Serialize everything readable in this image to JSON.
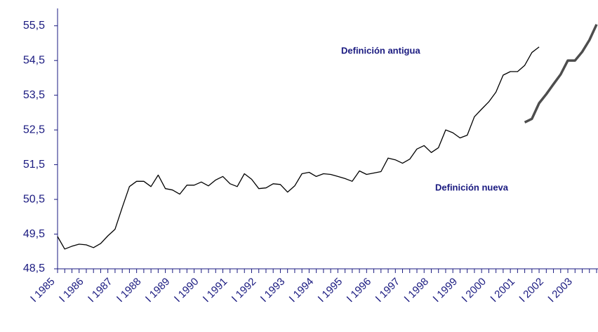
{
  "chart_data": {
    "type": "line",
    "categories": [
      "I 1985",
      null,
      null,
      null,
      "I 1986",
      null,
      null,
      null,
      "I 1987",
      null,
      null,
      null,
      "I 1988",
      null,
      null,
      null,
      "I 1989",
      null,
      null,
      null,
      "I 1990",
      null,
      null,
      null,
      "I 1991",
      null,
      null,
      null,
      "I 1992",
      null,
      null,
      null,
      "I 1993",
      null,
      null,
      null,
      "I 1994",
      null,
      null,
      null,
      "I 1995",
      null,
      null,
      null,
      "I 1996",
      null,
      null,
      null,
      "I 1997",
      null,
      null,
      null,
      "I 1998",
      null,
      null,
      null,
      "I 1999",
      null,
      null,
      null,
      "I 2000",
      null,
      null,
      null,
      "I 2001",
      null,
      null,
      null,
      "I 2002",
      null,
      null,
      null,
      "I 2003",
      null,
      null,
      null
    ],
    "series": [
      {
        "name": "Definición antigua",
        "color": "#000000",
        "values": [
          49.43,
          49.07,
          49.15,
          49.21,
          49.19,
          49.11,
          49.23,
          49.45,
          49.64,
          50.27,
          50.87,
          51.02,
          51.02,
          50.87,
          51.2,
          50.81,
          50.77,
          50.65,
          50.91,
          50.91,
          51.0,
          50.89,
          51.06,
          51.16,
          50.95,
          50.87,
          51.24,
          51.08,
          50.81,
          50.83,
          50.95,
          50.93,
          50.71,
          50.89,
          51.24,
          51.28,
          51.16,
          51.24,
          51.22,
          51.16,
          51.1,
          51.02,
          51.32,
          51.22,
          51.26,
          51.3,
          51.69,
          51.64,
          51.54,
          51.66,
          51.95,
          52.05,
          51.85,
          51.99,
          52.5,
          52.42,
          52.27,
          52.35,
          52.88,
          53.1,
          53.31,
          53.59,
          54.08,
          54.18,
          54.18,
          54.36,
          54.73,
          54.89,
          null,
          null,
          null,
          null,
          null,
          null,
          null,
          null
        ]
      },
      {
        "name": "Definición nueva",
        "color": "#4d4d4d",
        "values": [
          null,
          null,
          null,
          null,
          null,
          null,
          null,
          null,
          null,
          null,
          null,
          null,
          null,
          null,
          null,
          null,
          null,
          null,
          null,
          null,
          null,
          null,
          null,
          null,
          null,
          null,
          null,
          null,
          null,
          null,
          null,
          null,
          null,
          null,
          null,
          null,
          null,
          null,
          null,
          null,
          null,
          null,
          null,
          null,
          null,
          null,
          null,
          null,
          null,
          null,
          null,
          null,
          null,
          null,
          null,
          null,
          null,
          null,
          null,
          null,
          null,
          null,
          null,
          null,
          null,
          52.72,
          52.82,
          53.27,
          53.53,
          53.82,
          54.1,
          54.5,
          54.5,
          54.75,
          55.09,
          55.54
        ]
      }
    ],
    "ylim": [
      48.5,
      56
    ],
    "yticks": [
      {
        "value": 48.5,
        "label": "48,5"
      },
      {
        "value": 49.5,
        "label": "49,5"
      },
      {
        "value": 50.5,
        "label": "50,5"
      },
      {
        "value": 51.5,
        "label": "51,5"
      },
      {
        "value": 52.5,
        "label": "52,5"
      },
      {
        "value": 53.5,
        "label": "53,5"
      },
      {
        "value": 54.5,
        "label": "54,5"
      },
      {
        "value": 55.5,
        "label": "55,5"
      }
    ],
    "grid": false
  }
}
